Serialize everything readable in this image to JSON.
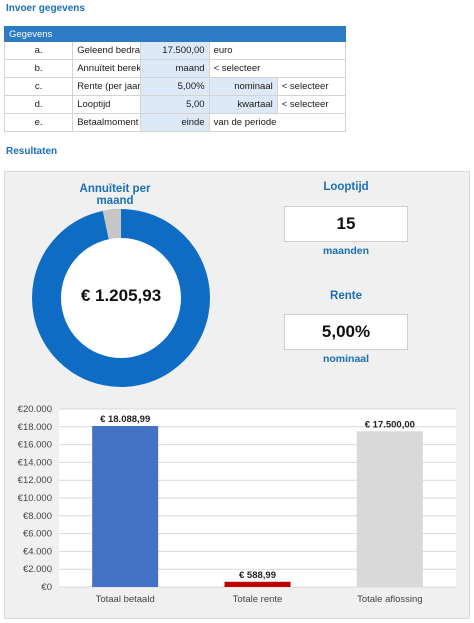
{
  "input": {
    "title": "Invoer gegevens",
    "header": "Gegevens",
    "rows": [
      {
        "letter": "a.",
        "label": "Geleend bedrag",
        "value": "17.500,00",
        "extra": "euro",
        "note": ""
      },
      {
        "letter": "b.",
        "label": "Annuïteit berekenen per",
        "value": "maand",
        "extra": "< selecteer",
        "note": ""
      },
      {
        "letter": "c.",
        "label": "Rente (per jaar)",
        "value": "5,00%",
        "extra": "nominaal",
        "note": "< selecteer"
      },
      {
        "letter": "d.",
        "label": "Looptijd",
        "value": "5,00",
        "extra": "kwartaal",
        "note": "< selecteer"
      },
      {
        "letter": "e.",
        "label": "Betaalmoment (selecteren)",
        "value": "einde",
        "extra": "van de periode",
        "note": ""
      }
    ]
  },
  "results": {
    "title": "Resultaten",
    "annuity_title": "Annuïteit per maand",
    "annuity_value": "€ 1.205,93",
    "term_title": "Looptijd",
    "term_value": "15",
    "term_unit": "maanden",
    "rate_title": "Rente",
    "rate_value": "5,00%",
    "rate_unit": "nominaal"
  },
  "donut": {
    "share_principal": 0.967,
    "share_interest": 0.033,
    "colors": {
      "principal": "#0e6cc5",
      "interest": "#c6c6c6"
    }
  },
  "chart_data": {
    "type": "bar",
    "categories": [
      "Totaal betaald",
      "Totale rente",
      "Totale aflossing"
    ],
    "values": [
      18088.99,
      588.99,
      17500.0
    ],
    "data_labels": [
      "€ 18.088,99",
      "€ 588,99",
      "€ 17.500,00"
    ],
    "colors": [
      "#4472c4",
      "#c00000",
      "#d9d9d9"
    ],
    "ylim": [
      0,
      20000
    ],
    "yticks": [
      "€0",
      "€2.000",
      "€4.000",
      "€6.000",
      "€8.000",
      "€10.000",
      "€12.000",
      "€14.000",
      "€16.000",
      "€18.000",
      "€20.000"
    ],
    "grid": true
  }
}
